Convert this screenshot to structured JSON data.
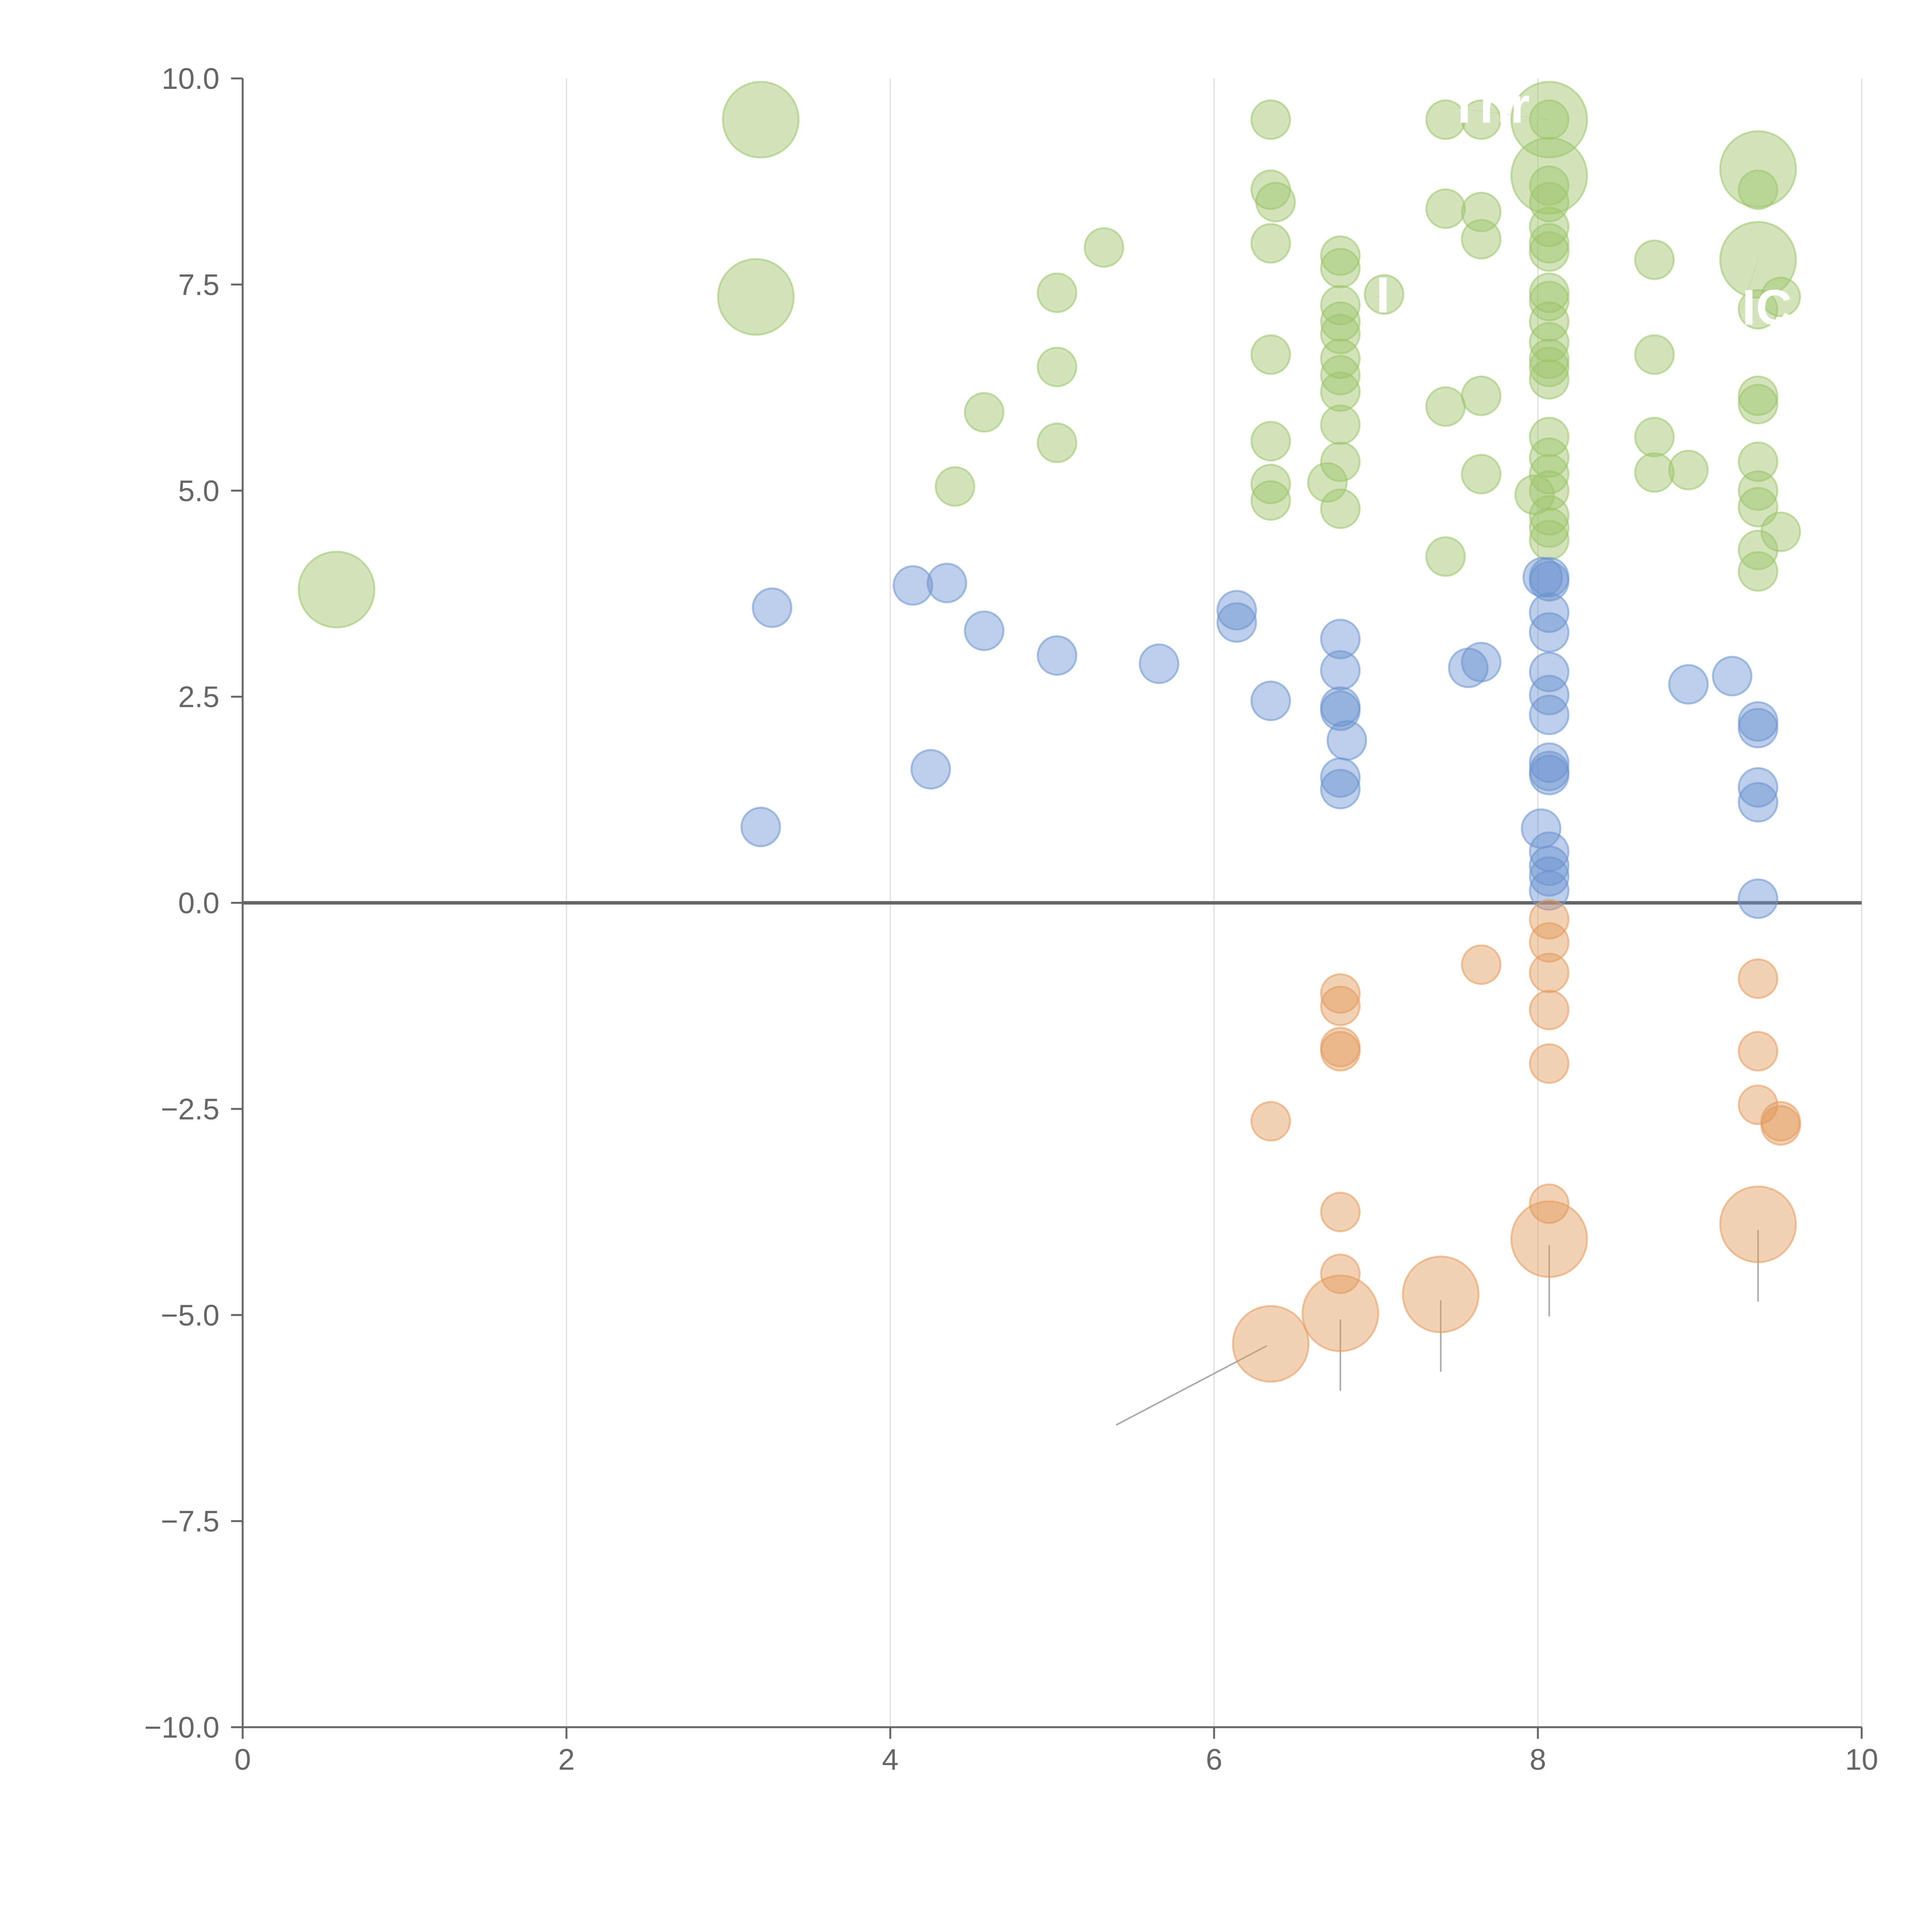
{
  "chart_data": {
    "type": "scatter",
    "title": "",
    "xlabel": "",
    "ylabel": "",
    "xlim": [
      0,
      10
    ],
    "ylim": [
      -10,
      10
    ],
    "x_ticks": [
      0,
      2,
      4,
      6,
      8,
      10
    ],
    "x_tick_labels": [
      "0",
      "2",
      "4",
      "6",
      "8",
      "10"
    ],
    "y_ticks": [
      10,
      7.5,
      5,
      2.5,
      0,
      -2.5,
      -5,
      -7.5,
      -10
    ],
    "y_tick_labels": [
      "10.0",
      "7.5",
      "5.0",
      "2.5",
      "0.0",
      "−2.5",
      "−5.0",
      "−7.5",
      "−10.0"
    ],
    "grid": {
      "x": true,
      "y": false
    },
    "zero_line": true,
    "colors": {
      "positive_high": "#9dc46a",
      "positive_low": "#6b93cf",
      "negative": "#e39a5c",
      "axis": "#666666",
      "grid": "#dcdcdc"
    },
    "series": [
      {
        "name": "green",
        "color": "#9dc46a",
        "points": [
          [
            0.58,
            3.8,
            2
          ],
          [
            3.2,
            9.5,
            2
          ],
          [
            3.17,
            7.35,
            2
          ],
          [
            4.4,
            5.05,
            1
          ],
          [
            4.58,
            5.95,
            1
          ],
          [
            5.03,
            7.4,
            1
          ],
          [
            5.03,
            6.5,
            1
          ],
          [
            5.03,
            5.58,
            1
          ],
          [
            5.32,
            7.95,
            1
          ],
          [
            6.35,
            9.5,
            1
          ],
          [
            6.35,
            8.65,
            1
          ],
          [
            6.38,
            8.5,
            1
          ],
          [
            6.35,
            8.0,
            1
          ],
          [
            6.35,
            6.65,
            1
          ],
          [
            6.35,
            5.6,
            1
          ],
          [
            6.35,
            5.08,
            1
          ],
          [
            6.35,
            4.88,
            1
          ],
          [
            6.78,
            7.85,
            1
          ],
          [
            6.78,
            7.7,
            1
          ],
          [
            6.78,
            7.25,
            1
          ],
          [
            6.78,
            7.05,
            1
          ],
          [
            6.78,
            6.9,
            1
          ],
          [
            6.78,
            6.6,
            1
          ],
          [
            6.78,
            6.4,
            1
          ],
          [
            6.78,
            6.2,
            1
          ],
          [
            6.78,
            5.8,
            1
          ],
          [
            6.78,
            5.35,
            1
          ],
          [
            6.7,
            5.1,
            1
          ],
          [
            6.78,
            4.78,
            1
          ],
          [
            7.05,
            7.38,
            1
          ],
          [
            7.43,
            9.5,
            1
          ],
          [
            7.43,
            8.42,
            1
          ],
          [
            7.43,
            6.02,
            1
          ],
          [
            7.43,
            4.2,
            1
          ],
          [
            7.65,
            9.5,
            1
          ],
          [
            7.65,
            8.38,
            1
          ],
          [
            7.65,
            8.05,
            1
          ],
          [
            7.65,
            6.15,
            1
          ],
          [
            7.65,
            5.2,
            1
          ],
          [
            8.07,
            9.5,
            2
          ],
          [
            8.07,
            8.82,
            2
          ],
          [
            8.07,
            9.5,
            1
          ],
          [
            8.07,
            8.7,
            1
          ],
          [
            8.07,
            8.5,
            1
          ],
          [
            8.07,
            8.2,
            1
          ],
          [
            8.07,
            8.0,
            1
          ],
          [
            8.07,
            7.9,
            1
          ],
          [
            8.07,
            7.4,
            1
          ],
          [
            8.07,
            7.3,
            1
          ],
          [
            8.07,
            7.05,
            1
          ],
          [
            8.07,
            6.8,
            1
          ],
          [
            8.07,
            6.6,
            1
          ],
          [
            8.07,
            6.5,
            1
          ],
          [
            8.07,
            6.35,
            1
          ],
          [
            8.07,
            5.65,
            1
          ],
          [
            8.07,
            5.4,
            1
          ],
          [
            8.07,
            5.2,
            1
          ],
          [
            8.07,
            5.0,
            1
          ],
          [
            8.07,
            4.7,
            1
          ],
          [
            8.07,
            4.55,
            1
          ],
          [
            8.07,
            4.4,
            1
          ],
          [
            7.98,
            4.95,
            1
          ],
          [
            8.72,
            7.8,
            1
          ],
          [
            8.72,
            6.65,
            1
          ],
          [
            8.72,
            5.65,
            1
          ],
          [
            8.72,
            5.22,
            1
          ],
          [
            8.93,
            5.25,
            1
          ],
          [
            9.36,
            8.9,
            2
          ],
          [
            9.36,
            7.8,
            2
          ],
          [
            9.36,
            8.65,
            1
          ],
          [
            9.36,
            7.2,
            1
          ],
          [
            9.5,
            7.35,
            1
          ],
          [
            9.36,
            6.15,
            1
          ],
          [
            9.36,
            6.05,
            1
          ],
          [
            9.36,
            5.35,
            1
          ],
          [
            9.36,
            5.0,
            1
          ],
          [
            9.36,
            4.8,
            1
          ],
          [
            9.5,
            4.5,
            1
          ],
          [
            9.36,
            4.28,
            1
          ],
          [
            9.36,
            4.02,
            1
          ]
        ]
      },
      {
        "name": "blue",
        "color": "#6b93cf",
        "points": [
          [
            3.2,
            0.92,
            1
          ],
          [
            3.27,
            3.58,
            1
          ],
          [
            4.14,
            3.85,
            1
          ],
          [
            4.25,
            1.62,
            1
          ],
          [
            4.35,
            3.88,
            1
          ],
          [
            4.58,
            3.3,
            1
          ],
          [
            5.03,
            3.0,
            1
          ],
          [
            5.66,
            2.9,
            1
          ],
          [
            6.14,
            3.55,
            1
          ],
          [
            6.14,
            3.4,
            1
          ],
          [
            6.35,
            2.45,
            1
          ],
          [
            6.78,
            3.2,
            1
          ],
          [
            6.78,
            2.82,
            1
          ],
          [
            6.78,
            2.38,
            1
          ],
          [
            6.78,
            2.33,
            1
          ],
          [
            6.82,
            1.97,
            1
          ],
          [
            6.78,
            1.52,
            1
          ],
          [
            6.78,
            1.38,
            1
          ],
          [
            7.57,
            2.85,
            1
          ],
          [
            7.65,
            2.92,
            1
          ],
          [
            8.03,
            3.95,
            1
          ],
          [
            8.07,
            3.95,
            1
          ],
          [
            8.07,
            3.9,
            1
          ],
          [
            8.07,
            3.52,
            1
          ],
          [
            8.07,
            3.28,
            1
          ],
          [
            8.07,
            2.8,
            1
          ],
          [
            8.07,
            2.52,
            1
          ],
          [
            8.07,
            2.28,
            1
          ],
          [
            8.07,
            1.7,
            1
          ],
          [
            8.07,
            1.6,
            1
          ],
          [
            8.07,
            1.55,
            1
          ],
          [
            8.02,
            0.9,
            1
          ],
          [
            8.07,
            0.62,
            1
          ],
          [
            8.07,
            0.45,
            1
          ],
          [
            8.07,
            0.32,
            1
          ],
          [
            8.07,
            0.15,
            1
          ],
          [
            8.93,
            2.65,
            1
          ],
          [
            9.2,
            2.75,
            1
          ],
          [
            9.36,
            2.2,
            1
          ],
          [
            9.36,
            2.12,
            1
          ],
          [
            9.36,
            1.4,
            1
          ],
          [
            9.36,
            1.22,
            1
          ],
          [
            9.36,
            0.05,
            1
          ]
        ]
      },
      {
        "name": "orange",
        "color": "#e39a5c",
        "points": [
          [
            6.35,
            -2.65,
            1
          ],
          [
            6.35,
            -5.35,
            2
          ],
          [
            6.78,
            -1.1,
            1
          ],
          [
            6.78,
            -1.25,
            1
          ],
          [
            6.78,
            -1.75,
            1
          ],
          [
            6.78,
            -1.8,
            1
          ],
          [
            6.78,
            -3.75,
            1
          ],
          [
            6.78,
            -4.5,
            1
          ],
          [
            6.78,
            -4.98,
            2
          ],
          [
            7.4,
            -4.75,
            2
          ],
          [
            7.65,
            -0.75,
            1
          ],
          [
            8.07,
            -0.2,
            1
          ],
          [
            8.07,
            -0.48,
            1
          ],
          [
            8.07,
            -0.85,
            1
          ],
          [
            8.07,
            -1.3,
            1
          ],
          [
            8.07,
            -1.95,
            1
          ],
          [
            8.07,
            -3.65,
            1
          ],
          [
            8.07,
            -4.08,
            2
          ],
          [
            9.36,
            -0.92,
            1
          ],
          [
            9.36,
            -1.8,
            1
          ],
          [
            9.36,
            -2.45,
            1
          ],
          [
            9.5,
            -2.65,
            1
          ],
          [
            9.5,
            -2.7,
            1
          ],
          [
            9.36,
            -3.9,
            2
          ]
        ]
      }
    ],
    "annotations": [
      {
        "text": "Thr",
        "color": "#ffffff",
        "point": [
          8.07,
          9.5
        ],
        "label_at": [
          7.45,
          9.65
        ],
        "leader_color": "#eef5e4"
      },
      {
        "text": "ICA",
        "color": "#ffffff",
        "point": [
          9.36,
          7.8
        ],
        "label_at": [
          9.26,
          7.2
        ],
        "leader_color": "#eef5e4"
      },
      {
        "text": "I",
        "color": "#ffffff",
        "point": [
          7.05,
          7.38
        ],
        "label_at": [
          7.0,
          7.35
        ],
        "leader_color": "#eef5e4"
      }
    ]
  }
}
